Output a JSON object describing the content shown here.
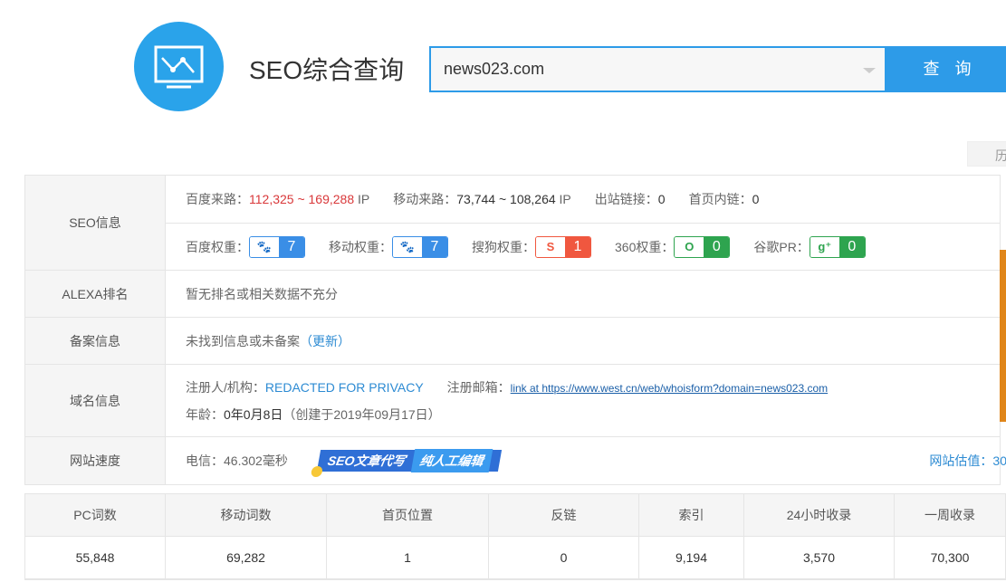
{
  "header": {
    "title": "SEO综合查询",
    "search_value": "news023.com",
    "query_button": "查 询",
    "history_label": "历"
  },
  "seo": {
    "label": "SEO信息",
    "baidu_traffic_label": "百度来路：",
    "baidu_traffic": "112,325 ~ 169,288",
    "baidu_unit": "IP",
    "mobile_traffic_label": "移动来路：",
    "mobile_traffic": "73,744 ~ 108,264",
    "mobile_unit": "IP",
    "outlinks_label": "出站链接：",
    "outlinks": "0",
    "inlinks_label": "首页内链：",
    "inlinks": "0",
    "weights": [
      {
        "label": "百度权重：",
        "value": "7",
        "color": "#3a8ee6",
        "icon": "paw-icon"
      },
      {
        "label": "移动权重：",
        "value": "7",
        "color": "#3a8ee6",
        "icon": "paw-icon"
      },
      {
        "label": "搜狗权重：",
        "value": "1",
        "color": "#f0573f",
        "icon": "sogou-icon"
      },
      {
        "label": "360权重：",
        "value": "0",
        "color": "#2ea44f",
        "icon": "360-icon"
      },
      {
        "label": "谷歌PR：",
        "value": "0",
        "color": "#2ea44f",
        "icon": "google-plus-icon"
      }
    ]
  },
  "alexa": {
    "label": "ALEXA排名",
    "value": "暂无排名或相关数据不充分"
  },
  "icp": {
    "label": "备案信息",
    "value": "未找到信息或未备案",
    "update": "（更新）"
  },
  "domain": {
    "label": "域名信息",
    "registrant_label": "注册人/机构：",
    "registrant": "REDACTED FOR PRIVACY",
    "email_label": "注册邮箱：",
    "email": "link at https://www.west.cn/web/whoisform?domain=news023.com",
    "age_label": "年龄：",
    "age": "0年0月8日",
    "created": "（创建于2019年09月17日）"
  },
  "speed": {
    "label": "网站速度",
    "telecom": "电信：46.302毫秒",
    "promo_a": "SEO文章代写",
    "promo_b": "纯人工编辑",
    "estimate": "网站估值：30"
  },
  "stats": {
    "headers": [
      "PC词数",
      "移动词数",
      "首页位置",
      "反链",
      "索引",
      "24小时收录",
      "一周收录"
    ],
    "values": [
      "55,848",
      "69,282",
      "1",
      "0",
      "9,194",
      "3,570",
      "70,300"
    ]
  }
}
